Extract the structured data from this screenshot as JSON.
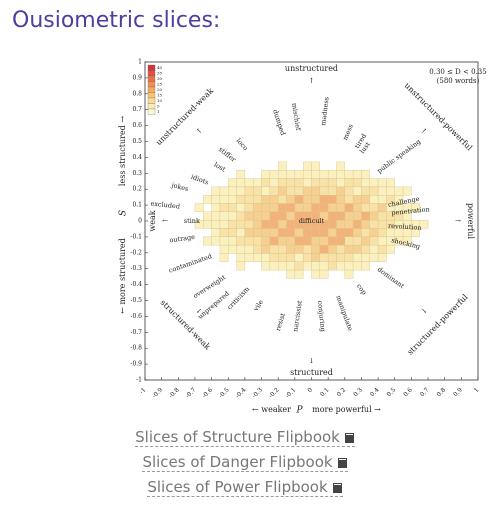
{
  "heading": "Ousiometric slices:",
  "figure": {
    "title": "0.30 ≤ D < 0.35",
    "subtitle": "(580 words)",
    "directions": {
      "top": "unstructured",
      "bottom": "structured",
      "left": "weak",
      "right": "powerful",
      "top_left": "unstructured-weak",
      "top_right": "unstructured-powerful",
      "bottom_left": "structured-weak",
      "bottom_right": "structured-powerful"
    },
    "x_label": "P",
    "x_label_left": "← weaker",
    "x_label_right": "more powerful →",
    "y_label": "S",
    "y_label_top": "less structured →",
    "y_label_bottom": "← more structured",
    "xlim": [
      -1,
      1
    ],
    "ylim": [
      -1,
      1
    ],
    "xticks": [
      -1,
      -0.9,
      -0.8,
      -0.7,
      -0.6,
      -0.5,
      -0.4,
      -0.3,
      -0.2,
      -0.1,
      0,
      0.1,
      0.2,
      0.3,
      0.4,
      0.5,
      0.6,
      0.7,
      0.8,
      0.9,
      1
    ],
    "yticks": [
      -1,
      -0.9,
      -0.8,
      -0.7,
      -0.6,
      -0.5,
      -0.4,
      -0.3,
      -0.2,
      -0.1,
      0,
      0.1,
      0.2,
      0.3,
      0.4,
      0.5,
      0.6,
      0.7,
      0.8,
      0.9,
      1
    ],
    "colorbar_ticks": [
      40,
      35,
      30,
      25,
      20,
      15,
      10,
      5,
      1
    ],
    "words": [
      {
        "text": "excluded",
        "p": -0.79,
        "s": 0.09,
        "color": "#222"
      },
      {
        "text": "stink",
        "p": -0.67,
        "s": 0.0,
        "color": "#999"
      },
      {
        "text": "jokes",
        "p": -0.74,
        "s": 0.2,
        "color": "#999"
      },
      {
        "text": "idiots",
        "p": -0.62,
        "s": 0.24,
        "color": "#222"
      },
      {
        "text": "lost",
        "p": -0.52,
        "s": 0.32,
        "color": "#222"
      },
      {
        "text": "stiffer",
        "p": -0.46,
        "s": 0.38,
        "color": "#222"
      },
      {
        "text": "loco",
        "p": -0.39,
        "s": 0.45,
        "color": "#222"
      },
      {
        "text": "dumped",
        "p": -0.17,
        "s": 0.54,
        "color": "#999"
      },
      {
        "text": "mischief",
        "p": -0.08,
        "s": 0.57,
        "color": "#222"
      },
      {
        "text": "madness",
        "p": 0.07,
        "s": 0.6,
        "color": "#222"
      },
      {
        "text": "mess",
        "p": 0.2,
        "s": 0.51,
        "color": "#222"
      },
      {
        "text": "tired",
        "p": 0.27,
        "s": 0.46,
        "color": "#999"
      },
      {
        "text": "lust",
        "p": 0.3,
        "s": 0.43,
        "color": "#222"
      },
      {
        "text": "public speaking",
        "p": 0.4,
        "s": 0.31,
        "color": "#222"
      },
      {
        "text": "challenge",
        "p": 0.46,
        "s": 0.1,
        "color": "#222"
      },
      {
        "text": "penetration",
        "p": 0.48,
        "s": 0.05,
        "color": "#999"
      },
      {
        "text": "revolution",
        "p": 0.46,
        "s": -0.03,
        "color": "#222"
      },
      {
        "text": "shocking",
        "p": 0.48,
        "s": -0.12,
        "color": "#999"
      },
      {
        "text": "dominant",
        "p": 0.4,
        "s": -0.3,
        "color": "#222"
      },
      {
        "text": "cop",
        "p": 0.28,
        "s": -0.4,
        "color": "#222"
      },
      {
        "text": "manipulate",
        "p": 0.16,
        "s": -0.47,
        "color": "#222"
      },
      {
        "text": "conjuring",
        "p": 0.05,
        "s": -0.5,
        "color": "#222"
      },
      {
        "text": "narcissist",
        "p": -0.07,
        "s": -0.5,
        "color": "#222"
      },
      {
        "text": "resist",
        "p": -0.17,
        "s": -0.58,
        "color": "#222"
      },
      {
        "text": "vile",
        "p": -0.3,
        "s": -0.5,
        "color": "#222"
      },
      {
        "text": "criticism",
        "p": -0.38,
        "s": -0.42,
        "color": "#222"
      },
      {
        "text": "unprepared",
        "p": -0.5,
        "s": -0.45,
        "color": "#999"
      },
      {
        "text": "overweight",
        "p": -0.52,
        "s": -0.35,
        "color": "#222"
      },
      {
        "text": "contaminated",
        "p": -0.6,
        "s": -0.22,
        "color": "#999"
      },
      {
        "text": "outrage",
        "p": -0.7,
        "s": -0.1,
        "color": "#222"
      },
      {
        "text": "difficult",
        "p": 0.0,
        "s": 0.0,
        "color": "#222"
      }
    ]
  },
  "links": [
    "Slices of Structure Flipbook",
    "Slices of Danger Flipbook",
    "Slices of Power Flipbook"
  ]
}
